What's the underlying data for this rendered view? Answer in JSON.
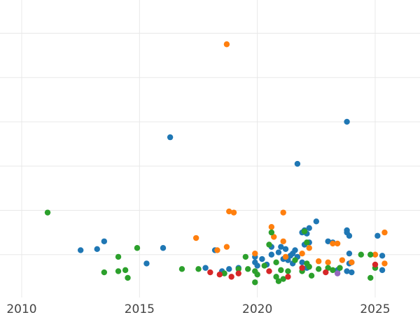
{
  "chart_data": {
    "type": "scatter",
    "title": "",
    "xlabel": "",
    "ylabel": "",
    "xlim": [
      2010,
      2027
    ],
    "ylim": [
      0,
      13.5
    ],
    "x_ticks": [
      "2010",
      "2015",
      "2020",
      "2025"
    ],
    "x_tick_values": [
      2010,
      2015,
      2020,
      2025
    ],
    "y_grid_values": [
      2,
      4,
      6,
      8,
      10,
      12
    ],
    "grid": true,
    "legend": "none",
    "series": [
      {
        "color": "#1f77b4",
        "points": [
          [
            2012.5,
            2.2
          ],
          [
            2013.2,
            2.25
          ],
          [
            2013.5,
            2.6
          ],
          [
            2015.3,
            1.6
          ],
          [
            2016.0,
            2.3
          ],
          [
            2016.3,
            7.3
          ],
          [
            2017.8,
            1.4
          ],
          [
            2018.2,
            2.2
          ],
          [
            2018.5,
            1.25
          ],
          [
            2018.8,
            1.35
          ],
          [
            2019.2,
            1.4
          ],
          [
            2019.9,
            1.9
          ],
          [
            2019.9,
            1.65
          ],
          [
            2020.2,
            1.8
          ],
          [
            2020.0,
            1.5
          ],
          [
            2020.4,
            1.55
          ],
          [
            2020.6,
            2.35
          ],
          [
            2020.6,
            2.0
          ],
          [
            2020.9,
            2.1
          ],
          [
            2021.0,
            2.35
          ],
          [
            2021.2,
            2.25
          ],
          [
            2021.1,
            1.8
          ],
          [
            2021.4,
            1.95
          ],
          [
            2021.5,
            2.05
          ],
          [
            2021.6,
            2.2
          ],
          [
            2021.3,
            1.75
          ],
          [
            2021.7,
            1.9
          ],
          [
            2021.5,
            1.6
          ],
          [
            2021.9,
            1.65
          ],
          [
            2021.7,
            6.1
          ],
          [
            2021.9,
            3.0
          ],
          [
            2022.1,
            2.95
          ],
          [
            2022.2,
            3.2
          ],
          [
            2022.0,
            3.1
          ],
          [
            2022.2,
            2.55
          ],
          [
            2022.0,
            2.45
          ],
          [
            2022.1,
            1.4
          ],
          [
            2022.5,
            3.5
          ],
          [
            2023.0,
            2.6
          ],
          [
            2023.2,
            2.55
          ],
          [
            2023.4,
            1.3
          ],
          [
            2023.8,
            8.0
          ],
          [
            2023.8,
            3.1
          ],
          [
            2023.8,
            3.0
          ],
          [
            2023.9,
            2.85
          ],
          [
            2023.9,
            2.05
          ],
          [
            2023.8,
            1.25
          ],
          [
            2024.0,
            1.65
          ],
          [
            2023.9,
            1.6
          ],
          [
            2024.0,
            1.2
          ],
          [
            2025.1,
            2.85
          ],
          [
            2025.3,
            1.95
          ],
          [
            2025.3,
            1.3
          ]
        ]
      },
      {
        "color": "#ff7f0e",
        "points": [
          [
            2018.7,
            11.5
          ],
          [
            2018.8,
            3.95
          ],
          [
            2019.0,
            3.9
          ],
          [
            2021.1,
            3.9
          ],
          [
            2017.4,
            2.75
          ],
          [
            2018.3,
            2.2
          ],
          [
            2018.7,
            2.35
          ],
          [
            2019.9,
            2.05
          ],
          [
            2020.6,
            3.25
          ],
          [
            2020.7,
            2.8
          ],
          [
            2021.1,
            2.6
          ],
          [
            2021.2,
            1.9
          ],
          [
            2021.9,
            2.05
          ],
          [
            2022.2,
            2.3
          ],
          [
            2022.6,
            1.7
          ],
          [
            2023.0,
            1.65
          ],
          [
            2023.2,
            2.5
          ],
          [
            2023.4,
            2.5
          ],
          [
            2023.6,
            1.75
          ],
          [
            2024.0,
            1.65
          ],
          [
            2025.0,
            2.0
          ],
          [
            2025.4,
            3.0
          ],
          [
            2025.4,
            1.6
          ]
        ]
      },
      {
        "color": "#2ca02c",
        "points": [
          [
            2011.1,
            3.9
          ],
          [
            2013.5,
            1.2
          ],
          [
            2014.1,
            1.25
          ],
          [
            2014.1,
            1.9
          ],
          [
            2014.4,
            1.3
          ],
          [
            2014.5,
            0.95
          ],
          [
            2014.9,
            2.3
          ],
          [
            2016.8,
            1.35
          ],
          [
            2017.5,
            1.35
          ],
          [
            2018.6,
            1.15
          ],
          [
            2019.2,
            1.35
          ],
          [
            2019.5,
            1.9
          ],
          [
            2019.6,
            1.35
          ],
          [
            2019.9,
            1.25
          ],
          [
            2020.0,
            1.1
          ],
          [
            2019.9,
            0.75
          ],
          [
            2020.3,
            1.5
          ],
          [
            2020.6,
            3.0
          ],
          [
            2020.5,
            2.45
          ],
          [
            2020.8,
            1.65
          ],
          [
            2020.8,
            1.0
          ],
          [
            2021.0,
            1.3
          ],
          [
            2020.9,
            0.8
          ],
          [
            2021.1,
            0.9
          ],
          [
            2021.3,
            1.25
          ],
          [
            2021.6,
            1.75
          ],
          [
            2021.9,
            1.25
          ],
          [
            2022.1,
            1.6
          ],
          [
            2022.2,
            1.45
          ],
          [
            2022.1,
            2.55
          ],
          [
            2022.3,
            1.05
          ],
          [
            2022.6,
            1.35
          ],
          [
            2023.0,
            1.4
          ],
          [
            2023.5,
            1.4
          ],
          [
            2023.2,
            1.3
          ],
          [
            2024.4,
            2.0
          ],
          [
            2024.8,
            0.95
          ],
          [
            2025.0,
            1.4
          ],
          [
            2024.8,
            2.0
          ],
          [
            2022.0,
            3.05
          ]
        ]
      },
      {
        "color": "#d62728",
        "points": [
          [
            2018.0,
            1.2
          ],
          [
            2018.4,
            1.1
          ],
          [
            2018.9,
            1.0
          ],
          [
            2019.2,
            1.15
          ],
          [
            2020.5,
            1.25
          ],
          [
            2021.3,
            1.0
          ],
          [
            2021.9,
            1.4
          ],
          [
            2022.9,
            1.2
          ],
          [
            2025.0,
            1.55
          ]
        ]
      },
      {
        "color": "#9467bd",
        "points": [
          [
            2023.4,
            1.15
          ]
        ]
      }
    ]
  }
}
